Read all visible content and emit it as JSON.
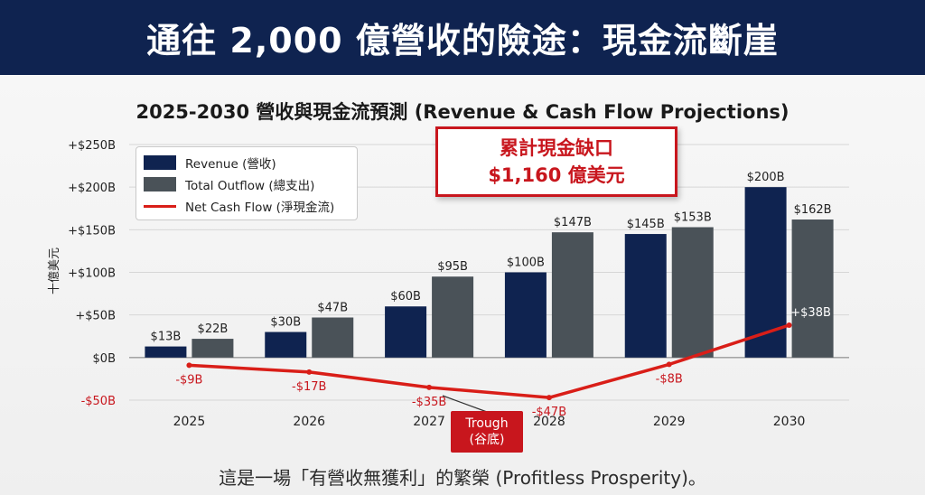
{
  "banner": {
    "title": "通往 2,000 億營收的險途：現金流斷崖"
  },
  "chart_data": {
    "type": "bar",
    "title": "2025-2030 營收與現金流預測 (Revenue & Cash Flow Projections)",
    "ylabel": "十億美元",
    "ylim": [
      -50,
      250
    ],
    "y_ticks": [
      250,
      200,
      150,
      100,
      50,
      0,
      -50
    ],
    "y_tick_labels": [
      "+$250B",
      "+$200B",
      "+$150B",
      "+$100B",
      "+$50B",
      "$0B",
      "-$50B"
    ],
    "categories": [
      "2025",
      "2026",
      "2027",
      "2028",
      "2029",
      "2030"
    ],
    "series": [
      {
        "name": "Revenue (營收)",
        "type": "bar",
        "color": "#0f2350",
        "values": [
          13,
          30,
          60,
          100,
          145,
          200
        ],
        "labels": [
          "$13B",
          "$30B",
          "$60B",
          "$100B",
          "$145B",
          "$200B"
        ]
      },
      {
        "name": "Total Outflow (總支出)",
        "type": "bar",
        "color": "#4a5258",
        "values": [
          22,
          47,
          95,
          147,
          153,
          162
        ],
        "labels": [
          "$22B",
          "$47B",
          "$95B",
          "$147B",
          "$153B",
          "$162B"
        ]
      },
      {
        "name": "Net Cash Flow (淨現金流)",
        "type": "line",
        "color": "#d91e18",
        "values": [
          -9,
          -17,
          -35,
          -47,
          -8,
          38
        ],
        "labels": [
          "-$9B",
          "-$17B",
          "-$35B",
          "-$47B",
          "-$8B",
          "+$38B"
        ]
      }
    ],
    "grid": true,
    "legend": "top-left"
  },
  "callout": {
    "line1": "累計現金缺口",
    "line2": "$1,160 億美元",
    "color": "#c8161d"
  },
  "trough": {
    "line1": "Trough",
    "line2": "(谷底)"
  },
  "footer": {
    "text": "這是一場「有營收無獲利」的繁榮 (Profitless Prosperity)。"
  }
}
